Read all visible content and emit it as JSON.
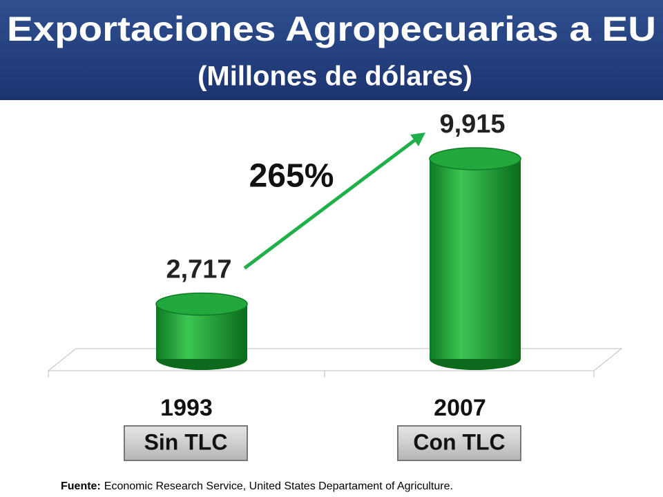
{
  "chart_data": {
    "type": "bar",
    "title": "Exportaciones Agropecuarias a EU",
    "subtitle": "(Millones de dólares)",
    "categories": [
      "1993",
      "2007"
    ],
    "category_notes": [
      "Sin TLC",
      "Con TLC"
    ],
    "values": [
      2717,
      9915
    ],
    "value_labels": [
      "2,717",
      "9,915"
    ],
    "color": "#22a83c",
    "annotation": "265%",
    "source": {
      "label": "Fuente:",
      "text": "Economic Research Service, United States Departament of Agriculture."
    }
  }
}
